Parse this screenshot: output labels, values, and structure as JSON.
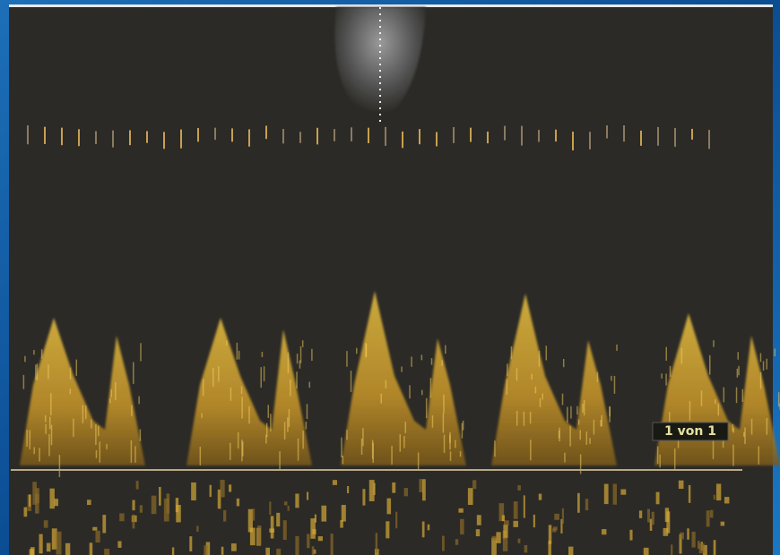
{
  "frame_label": "1 von 1"
}
